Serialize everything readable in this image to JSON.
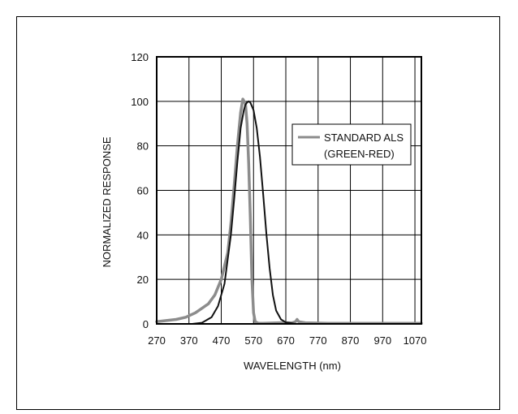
{
  "chart_data": {
    "type": "line",
    "title": "",
    "xlabel": "WAVELENGTH (nm)",
    "ylabel": "NORMALIZED RESPONSE",
    "xlim": [
      270,
      1090
    ],
    "ylim": [
      0,
      120
    ],
    "xticks": [
      270,
      370,
      470,
      570,
      670,
      770,
      870,
      970,
      1070
    ],
    "yticks": [
      0,
      20,
      40,
      60,
      80,
      100,
      120
    ],
    "grid": true,
    "legend_position": "top-right",
    "legend": {
      "line1": "STANDARD ALS",
      "line2": "(GREEN-RED)"
    },
    "series": [
      {
        "name": "STANDARD ALS (GREEN-RED)",
        "color": "#8c8c8c",
        "x": [
          270,
          300,
          330,
          360,
          390,
          410,
          430,
          450,
          470,
          490,
          500,
          510,
          520,
          530,
          537,
          545,
          550,
          555,
          560,
          565,
          570,
          575,
          585,
          600,
          650,
          690,
          700,
          705,
          710,
          730,
          800,
          1090
        ],
        "y": [
          1,
          1.5,
          2,
          3,
          5,
          7,
          9,
          13,
          20,
          32,
          45,
          62,
          80,
          95,
          101,
          99,
          90,
          72,
          48,
          20,
          5,
          1,
          0.3,
          0.3,
          0.5,
          0.5,
          1,
          2,
          1,
          0.5,
          0.3,
          0.3
        ]
      },
      {
        "name": "",
        "color": "#111111",
        "x": [
          380,
          410,
          440,
          460,
          480,
          500,
          510,
          520,
          530,
          540,
          545,
          550,
          555,
          560,
          570,
          580,
          590,
          600,
          610,
          620,
          630,
          640,
          655,
          670,
          690,
          700,
          730,
          1090
        ],
        "y": [
          0,
          0.5,
          3,
          8,
          18,
          40,
          56,
          73,
          88,
          96,
          98.5,
          99.5,
          100,
          99.5,
          96,
          88,
          75,
          58,
          40,
          25,
          13,
          6,
          2,
          0.7,
          0.3,
          0,
          0,
          0
        ]
      }
    ]
  }
}
